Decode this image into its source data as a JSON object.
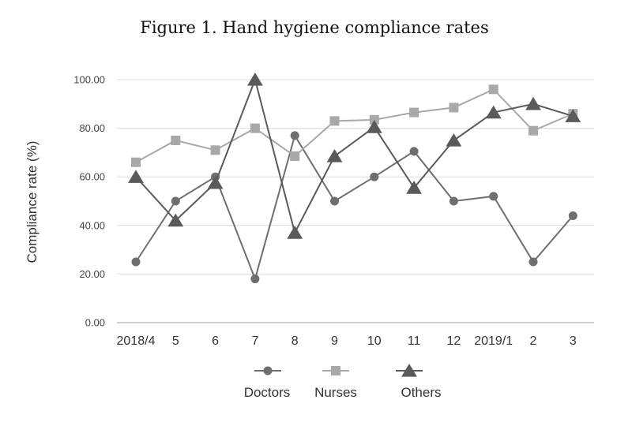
{
  "chart_data": {
    "type": "line",
    "title": "Figure 1. Hand hygiene compliance rates",
    "xlabel": "",
    "ylabel": "Compliance rate (%)",
    "ylim": [
      0,
      100
    ],
    "yticks": [
      "0.00",
      "20.00",
      "40.00",
      "60.00",
      "80.00",
      "100.00"
    ],
    "categories": [
      "2018/4",
      "5",
      "6",
      "7",
      "8",
      "9",
      "10",
      "11",
      "12",
      "2019/1",
      "2",
      "3"
    ],
    "grid": true,
    "legend_position": "bottom",
    "series": [
      {
        "name": "Doctors",
        "marker": "circle",
        "color": "#6e6e6e",
        "values": [
          25,
          50,
          60,
          18,
          77,
          50,
          60,
          70.5,
          50,
          52,
          25,
          44
        ]
      },
      {
        "name": "Nurses",
        "marker": "square",
        "color": "#a8a8a8",
        "values": [
          66,
          75,
          71,
          80,
          68.5,
          83,
          83.5,
          86.5,
          88.5,
          96,
          79,
          86
        ]
      },
      {
        "name": "Others",
        "marker": "triangle",
        "color": "#5a5a5a",
        "values": [
          60,
          42,
          57.5,
          100,
          37,
          68.5,
          80.5,
          55.5,
          75,
          86.5,
          90,
          85
        ]
      }
    ]
  }
}
